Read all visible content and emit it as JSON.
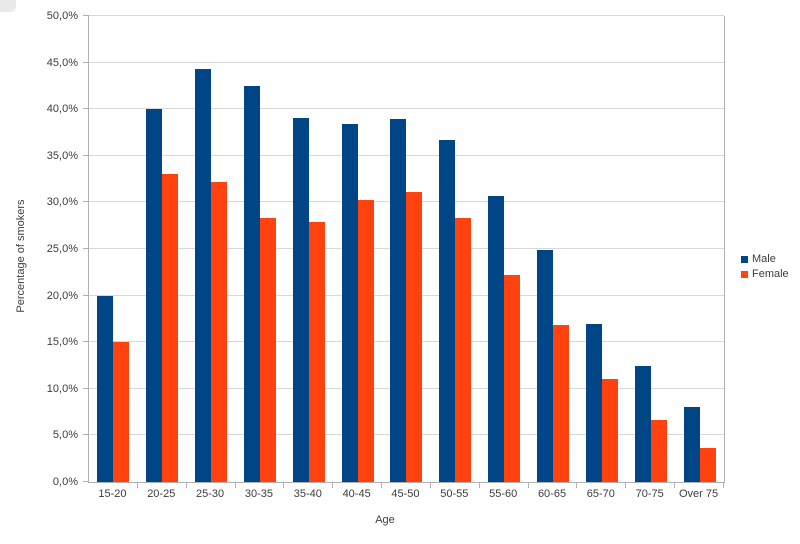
{
  "chart_data": {
    "type": "bar",
    "title": "",
    "xlabel": "Age",
    "ylabel": "Percentage of smokers",
    "categories": [
      "15-20",
      "20-25",
      "25-30",
      "30-35",
      "35-40",
      "40-45",
      "45-50",
      "50-55",
      "55-60",
      "60-65",
      "65-70",
      "70-75",
      "Over 75"
    ],
    "series": [
      {
        "name": "Male",
        "color": "#004586",
        "values": [
          20.0,
          40.0,
          44.3,
          42.5,
          39.1,
          38.4,
          39.0,
          36.7,
          30.7,
          24.9,
          17.0,
          12.5,
          8.1
        ]
      },
      {
        "name": "Female",
        "color": "#ff420e",
        "values": [
          15.0,
          33.0,
          32.2,
          28.3,
          27.9,
          30.3,
          31.1,
          28.3,
          22.2,
          16.8,
          11.0,
          6.7,
          3.7
        ]
      }
    ],
    "ylim": [
      0,
      50
    ],
    "ytick_step": 5,
    "ytick_labels": [
      "0,0%",
      "5,0%",
      "10,0%",
      "15,0%",
      "20,0%",
      "25,0%",
      "30,0%",
      "35,0%",
      "40,0%",
      "45,0%",
      "50,0%"
    ],
    "grid": true,
    "legend_position": "right"
  },
  "colors": {
    "background": "#ffffff",
    "grid": "#d8d8d8",
    "axis": "#b0b0b0",
    "text": "#3c3c3c"
  }
}
